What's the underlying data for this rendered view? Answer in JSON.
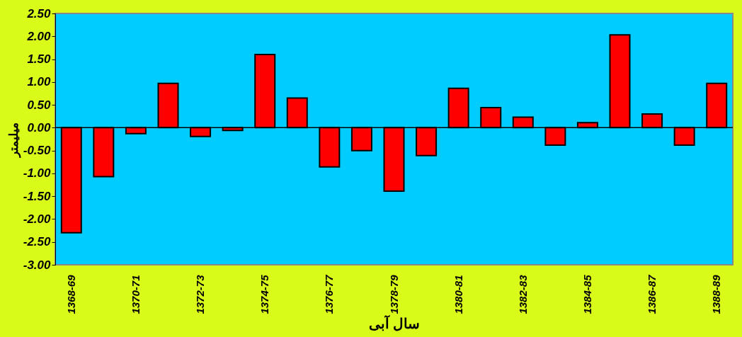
{
  "chart_data": {
    "type": "bar",
    "xlabel": "سال آبی",
    "ylabel": "میلیمتر",
    "categories": [
      "1368-69",
      null,
      "1370-71",
      null,
      "1372-73",
      null,
      "1374-75",
      null,
      "1376-77",
      null,
      "1378-79",
      null,
      "1380-81",
      null,
      "1382-83",
      null,
      "1384-85",
      null,
      "1386-87",
      null,
      "1388-89"
    ],
    "values": [
      -2.3,
      -1.07,
      -0.13,
      0.97,
      -0.19,
      -0.06,
      1.6,
      0.65,
      -0.86,
      -0.5,
      -1.39,
      -0.61,
      0.86,
      0.44,
      0.23,
      -0.38,
      0.11,
      2.03,
      0.3,
      -0.38,
      0.97
    ],
    "color": "#ff0000",
    "ylim": [
      -3,
      2.5
    ],
    "yticks": [
      {
        "value": -3,
        "label": "-3.00"
      },
      {
        "value": -2.5,
        "label": "-2.50"
      },
      {
        "value": -2,
        "label": "-2.00"
      },
      {
        "value": -1.5,
        "label": "-1.50"
      },
      {
        "value": -1,
        "label": "-1.00"
      },
      {
        "value": -0.5,
        "label": "-0.50"
      },
      {
        "value": 0,
        "label": "0.00"
      },
      {
        "value": 0.5,
        "label": "0.50"
      },
      {
        "value": 1,
        "label": "1.00"
      },
      {
        "value": 1.5,
        "label": "1.50"
      },
      {
        "value": 2,
        "label": "2.00"
      },
      {
        "value": 2.5,
        "label": "2.50"
      }
    ],
    "ref_lines": [
      {
        "axis": "y",
        "value": 0,
        "color": "#000000"
      }
    ],
    "grid": false
  }
}
